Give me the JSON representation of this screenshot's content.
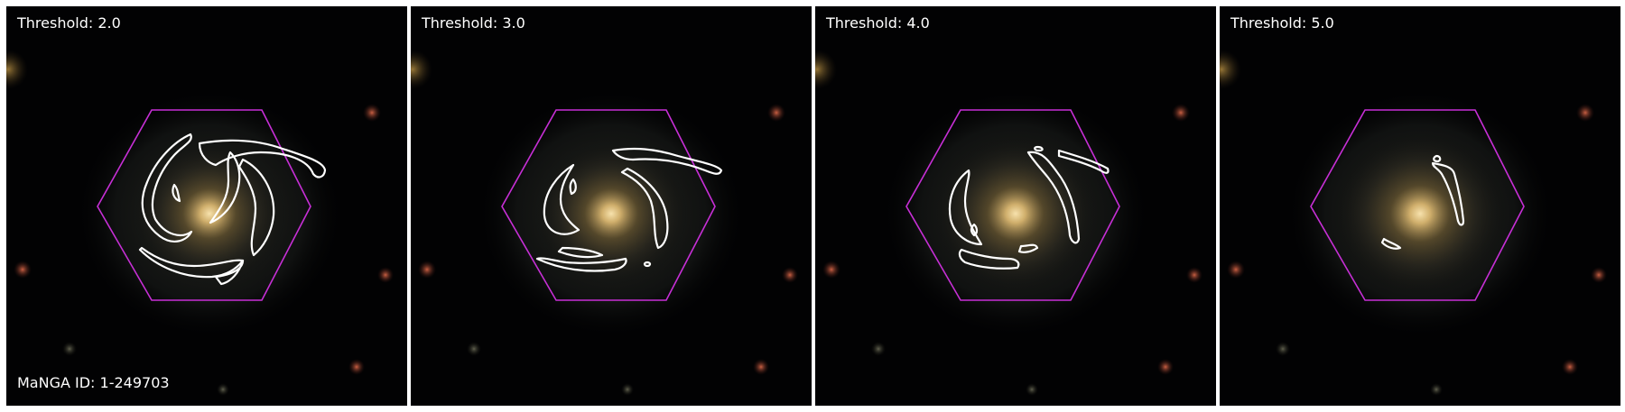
{
  "panels": [
    {
      "threshold_label": "Threshold: 2.0"
    },
    {
      "threshold_label": "Threshold: 3.0"
    },
    {
      "threshold_label": "Threshold: 4.0"
    },
    {
      "threshold_label": "Threshold: 5.0"
    }
  ],
  "manga_id_label": "MaNGA ID: 1-249703",
  "colors": {
    "hexagon": "#c72fd6",
    "contour": "#ffffff",
    "background": "#020203",
    "galaxy_core": "#f2d59a",
    "galaxy_halo": "#6a5532"
  }
}
